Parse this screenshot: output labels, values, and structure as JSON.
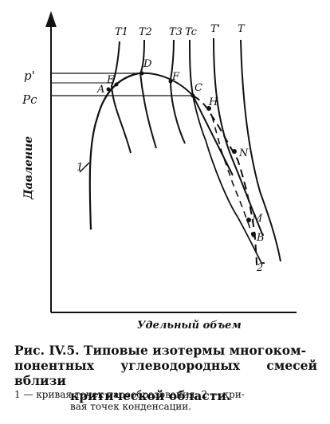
{
  "diagram": {
    "y_axis_label": "Давление",
    "x_axis_label": "Удельный объем",
    "pressure_labels": {
      "p_prime": "p'",
      "p_c": "Pc"
    },
    "isotherm_labels": [
      "T1",
      "T2",
      "T3",
      "Tc",
      "T'",
      "T"
    ],
    "point_labels": [
      "A",
      "E",
      "D",
      "F",
      "C",
      "H",
      "N",
      "M",
      "B"
    ],
    "curve_labels": {
      "bubble_curve": "1",
      "dew_curve": "2"
    }
  },
  "caption": {
    "title_line1": "Рис. IV.5. Типовые изотермы многоком-",
    "title_line2": "понентных углеводородных смесей вблизи",
    "title_line3": "критической области.",
    "note_line1": "1 — кривая точек парообразования; 2 — кри-",
    "note_line2": "вая точек конденсации."
  }
}
